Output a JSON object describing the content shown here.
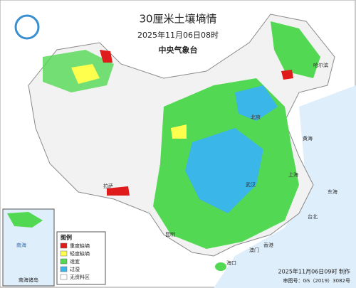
{
  "header": {
    "title": "30厘米土壤墒情",
    "date": "2025年11月06日08时",
    "publisher": "中央气象台"
  },
  "legend": {
    "title": "图例",
    "items": [
      "重度缺墒",
      "轻度缺墒",
      "适宜",
      "过湿",
      "无资料区"
    ]
  },
  "inset": {
    "label": "南海诸岛",
    "sea": "南海"
  },
  "places": [
    "哈尔滨",
    "北京",
    "上海",
    "武汉",
    "昆明",
    "拉萨",
    "台北",
    "香港",
    "澳门",
    "海口",
    "黄海",
    "东海"
  ],
  "footer": {
    "made": "2025年11月06日09时 制作",
    "review": "审图号：GS（2019）3082号"
  }
}
